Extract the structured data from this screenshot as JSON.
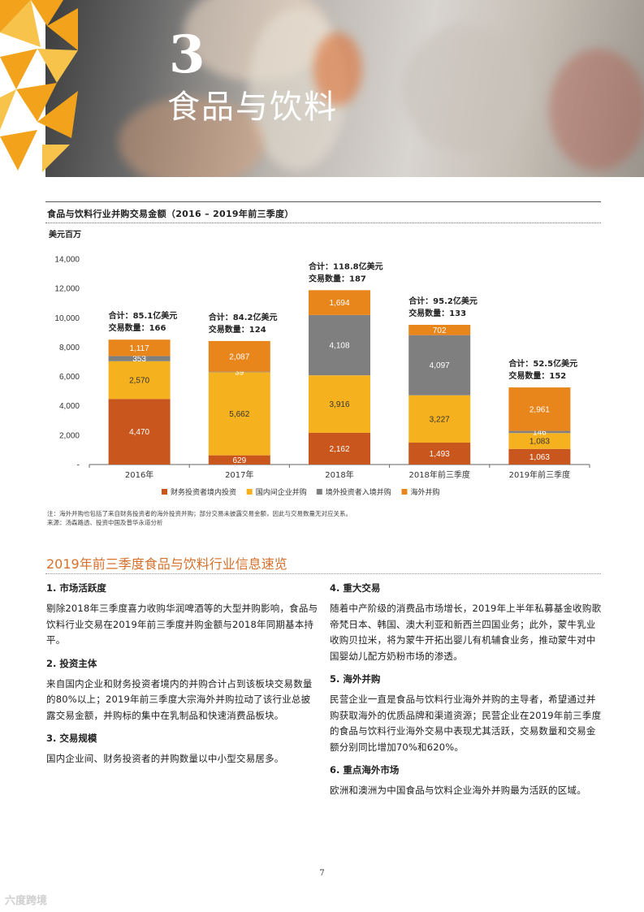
{
  "header": {
    "chapter_number": "3",
    "chapter_title": "食品与饮料"
  },
  "chart": {
    "title": "食品与饮料行业并购交易金额（2016 – 2019年前三季度）",
    "unit": "美元百万",
    "note_line1": "注：海外并购也包括了来自财务投资者的海外投资并购；部分交易未披露交易金额，因此与交易数量无对应关系。",
    "note_line2": "来源：汤森路透、投资中国及普华永道分析"
  },
  "chart_data": {
    "type": "bar",
    "stacked": true,
    "categories": [
      "2016年",
      "2017年",
      "2018年",
      "2018年前三季度",
      "2019年前三季度"
    ],
    "ylim": [
      0,
      14000
    ],
    "yticks": [
      {
        "value": 0,
        "label": "-"
      },
      {
        "value": 2000,
        "label": "2,000"
      },
      {
        "value": 4000,
        "label": "4,000"
      },
      {
        "value": 6000,
        "label": "6,000"
      },
      {
        "value": 8000,
        "label": "8,000"
      },
      {
        "value": 10000,
        "label": "10,000"
      },
      {
        "value": 12000,
        "label": "12,000"
      },
      {
        "value": 14000,
        "label": "14,000"
      }
    ],
    "series": [
      {
        "name": "财务投资者境内投资",
        "color": "#c9561c",
        "values": [
          4470,
          629,
          2162,
          1493,
          1063
        ]
      },
      {
        "name": "国内间企业并购",
        "color": "#f6b21e",
        "values": [
          2570,
          5662,
          3916,
          3227,
          1083
        ]
      },
      {
        "name": "境外投资者入境并购",
        "color": "#7f7f7f",
        "values": [
          353,
          39,
          4108,
          4097,
          146
        ]
      },
      {
        "name": "海外并购",
        "color": "#e8861c",
        "values": [
          1117,
          2087,
          1694,
          702,
          2961
        ]
      }
    ],
    "value_labels": [
      [
        "4,470",
        "2,570",
        "353",
        "1,117"
      ],
      [
        "629",
        "5,662",
        "39",
        "2,087"
      ],
      [
        "2,162",
        "3,916",
        "4,108",
        "1,694"
      ],
      [
        "1,493",
        "3,227",
        "4,097",
        "702"
      ],
      [
        "1,063",
        "1,083",
        "146",
        "2,961"
      ]
    ],
    "annotations": [
      {
        "total": "合计：85.1亿美元",
        "deals": "交易数量：166"
      },
      {
        "total": "合计：84.2亿美元",
        "deals": "交易数量：124"
      },
      {
        "total": "合计：118.8亿美元",
        "deals": "交易数量：187"
      },
      {
        "total": "合计：95.2亿美元",
        "deals": "交易数量：133"
      },
      {
        "total": "合计：52.5亿美元",
        "deals": "交易数量：152"
      }
    ],
    "legend_position": "bottom"
  },
  "section": {
    "title": "2019年前三季度食品与饮料行业信息速览",
    "left": [
      {
        "heading": "1. 市场活跃度",
        "body": "剔除2018年三季度喜力收购华润啤酒等的大型并购影响，食品与饮料行业交易在2019年前三季度并购金额与2018年同期基本持平。"
      },
      {
        "heading": "2. 投资主体",
        "body": "来自国内企业和财务投资者境内的并购合计占到该板块交易数量的80%以上；2019年前三季度大宗海外并购拉动了该行业总披露交易金额，并购标的集中在乳制品和快速消费品板块。"
      },
      {
        "heading": "3. 交易规模",
        "body": "国内企业间、财务投资者的并购数量以中小型交易居多。"
      }
    ],
    "right": [
      {
        "heading": "4. 重大交易",
        "body": "随着中产阶级的消费品市场增长，2019年上半年私募基金收购歌帝梵日本、韩国、澳大利亚和新西兰四国业务；此外，蒙牛乳业收购贝拉米，将为蒙牛开拓出婴儿有机辅食业务，推动蒙牛对中国婴幼儿配方奶粉市场的渗透。"
      },
      {
        "heading": "5. 海外并购",
        "body": "民营企业一直是食品与饮料行业海外并购的主导者，希望通过并购获取海外的优质品牌和渠道资源；民营企业在2019年前三季度的食品与饮料行业海外交易中表现尤其活跃，交易数量和交易金额分别同比增加70%和620%。"
      },
      {
        "heading": "6. 重点海外市场",
        "body": "欧洲和澳洲为中国食品与饮料企业海外并购最为活跃的区域。"
      }
    ]
  },
  "footer": {
    "page_number": "7",
    "watermark": "六度跨境"
  }
}
